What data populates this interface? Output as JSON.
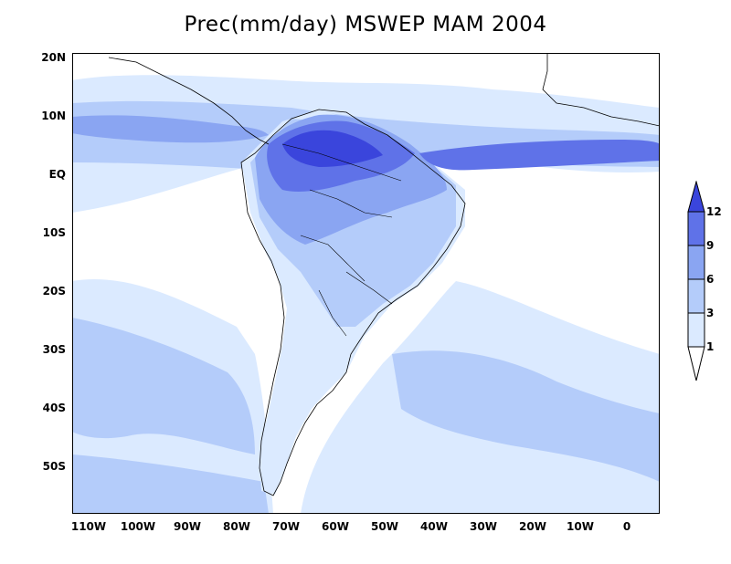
{
  "title": "Prec(mm/day) MSWEP MAM 2004",
  "axes": {
    "lat_labels": [
      "20N",
      "10N",
      "EQ",
      "10S",
      "20S",
      "30S",
      "40S",
      "50S"
    ],
    "lon_labels": [
      "110W",
      "100W",
      "90W",
      "80W",
      "70W",
      "60W",
      "50W",
      "40W",
      "30W",
      "20W",
      "10W",
      "0"
    ]
  },
  "colorbar": {
    "levels": [
      "1",
      "3",
      "6",
      "9",
      "12"
    ],
    "colors": [
      "#ffffff",
      "#dbeaff",
      "#b4ccfa",
      "#8aa5f2",
      "#5f72e8",
      "#3a45dc"
    ]
  },
  "map_colors": {
    "ocean": "#ffffff",
    "level_1_3": "#dbeaff",
    "level_3_6": "#b4ccfa",
    "level_6_9": "#8aa5f2",
    "level_9_12": "#5f72e8",
    "level_12_plus": "#3a45dc"
  }
}
